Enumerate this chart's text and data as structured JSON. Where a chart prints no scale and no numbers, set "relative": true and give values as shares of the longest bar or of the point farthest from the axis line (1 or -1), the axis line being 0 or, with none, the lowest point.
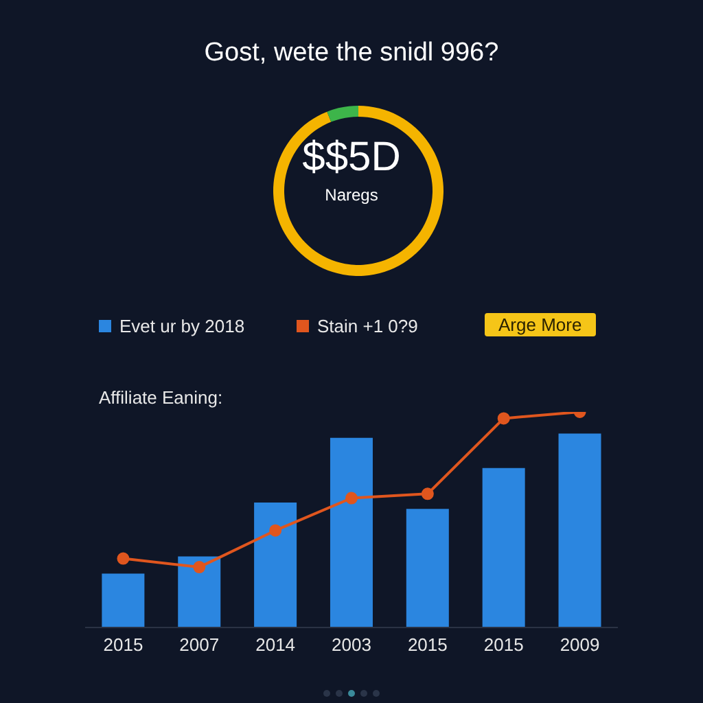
{
  "chart_data": [
    {
      "type": "donut",
      "title": "Gost, wete the snidl 996?",
      "categories": [
        null,
        null
      ],
      "values": [
        94,
        6
      ],
      "colors": [
        "#f5b400",
        "#3db54a"
      ],
      "annotations": [
        "$$5D",
        "Naregs"
      ]
    },
    {
      "type": "bar",
      "title": "Affiliate Eaning:",
      "relative": true,
      "categories": [
        "2015",
        "2007",
        "2014",
        "2003",
        "2015",
        "2015",
        "2009"
      ],
      "legend": "top",
      "marker": "circle",
      "annotations": [
        "Arge More"
      ],
      "series": [
        {
          "name": "Evet ur by 2018",
          "color": "#2b86e0",
          "values": [
            0.25,
            0.33,
            0.58,
            0.88,
            0.55,
            0.74,
            0.9
          ]
        },
        {
          "name": "Stain +1 0?9",
          "type": "line",
          "color": "#e0561e",
          "values": [
            0.32,
            0.28,
            0.45,
            0.6,
            0.62,
            0.97,
            1.0
          ]
        }
      ]
    }
  ]
}
